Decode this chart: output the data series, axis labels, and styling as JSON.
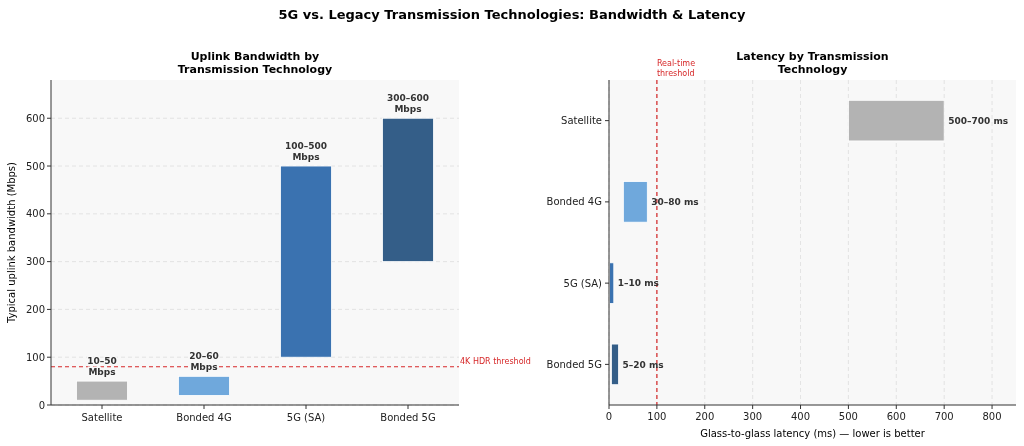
{
  "chart_data": [
    {
      "type": "other",
      "title": "5G vs. Legacy Transmission Technologies: Bandwidth & Latency"
    },
    {
      "type": "bar",
      "title": "Uplink Bandwidth by Transmission Technology",
      "ylabel": "Typical uplink bandwidth (Mbps)",
      "categories": [
        "Satellite",
        "Bonded 4G",
        "5G (SA)",
        "Bonded 5G"
      ],
      "base": [
        10,
        20,
        100,
        300
      ],
      "values": [
        40,
        40,
        400,
        300
      ],
      "colors": [
        "#b3b3b3",
        "#6fa8dc",
        "#3a72b0",
        "#345e88"
      ],
      "value_labels": [
        "10–50 Mbps",
        "20–60 Mbps",
        "100–500 Mbps",
        "300–600 Mbps"
      ],
      "ylim": [
        0,
        680
      ],
      "yticks": [
        0,
        100,
        200,
        300,
        400,
        500,
        600
      ],
      "grid": "y",
      "ref_lines": [
        {
          "axis": "y",
          "value": 80,
          "label": "4K HDR threshold",
          "color": "#d62728",
          "line_style": "dashed"
        }
      ]
    },
    {
      "type": "bar",
      "orientation": "horizontal",
      "title": "Latency by Transmission Technology",
      "xlabel": "Glass-to-glass latency (ms) — lower is better",
      "categories": [
        "Satellite",
        "Bonded 4G",
        "5G (SA)",
        "Bonded 5G"
      ],
      "base": [
        500,
        30,
        1,
        5
      ],
      "values": [
        200,
        50,
        9,
        15
      ],
      "colors": [
        "#b3b3b3",
        "#6fa8dc",
        "#3a72b0",
        "#345e88"
      ],
      "value_labels": [
        "500–700 ms",
        "30–80 ms",
        "1–10 ms",
        "5–20 ms"
      ],
      "xlim": [
        0,
        850
      ],
      "xticks": [
        0,
        100,
        200,
        300,
        400,
        500,
        600,
        700,
        800
      ],
      "grid": "x",
      "ref_lines": [
        {
          "axis": "x",
          "value": 100,
          "label": "Real-time threshold",
          "color": "#d62728",
          "line_style": "dashed"
        }
      ]
    }
  ]
}
